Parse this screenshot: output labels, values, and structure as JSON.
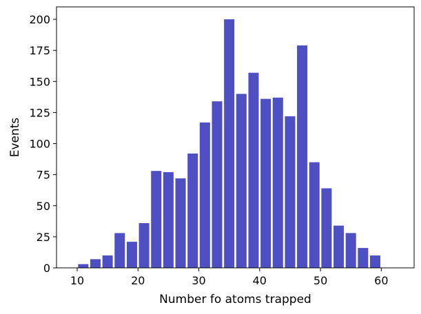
{
  "chart_data": {
    "type": "bar",
    "xlabel": "Number fo atoms trapped",
    "ylabel": "Events",
    "xlim": [
      6.6,
      65.4
    ],
    "ylim": [
      0,
      210
    ],
    "grid": false,
    "bin_width": 2,
    "bar_color": "#4f4fc4",
    "x_ticks": [
      10,
      20,
      30,
      40,
      50,
      60
    ],
    "y_ticks": [
      0,
      25,
      50,
      75,
      100,
      125,
      150,
      175,
      200
    ],
    "bins": [
      {
        "x": 10,
        "value": 3
      },
      {
        "x": 12,
        "value": 7
      },
      {
        "x": 14,
        "value": 10
      },
      {
        "x": 16,
        "value": 28
      },
      {
        "x": 18,
        "value": 21
      },
      {
        "x": 20,
        "value": 36
      },
      {
        "x": 22,
        "value": 78
      },
      {
        "x": 24,
        "value": 77
      },
      {
        "x": 26,
        "value": 72
      },
      {
        "x": 28,
        "value": 92
      },
      {
        "x": 30,
        "value": 117
      },
      {
        "x": 32,
        "value": 134
      },
      {
        "x": 34,
        "value": 200
      },
      {
        "x": 36,
        "value": 140
      },
      {
        "x": 38,
        "value": 157
      },
      {
        "x": 40,
        "value": 136
      },
      {
        "x": 42,
        "value": 137
      },
      {
        "x": 44,
        "value": 122
      },
      {
        "x": 46,
        "value": 179
      },
      {
        "x": 48,
        "value": 85
      },
      {
        "x": 50,
        "value": 64
      },
      {
        "x": 52,
        "value": 34
      },
      {
        "x": 54,
        "value": 28
      },
      {
        "x": 56,
        "value": 16
      },
      {
        "x": 58,
        "value": 10
      }
    ]
  }
}
